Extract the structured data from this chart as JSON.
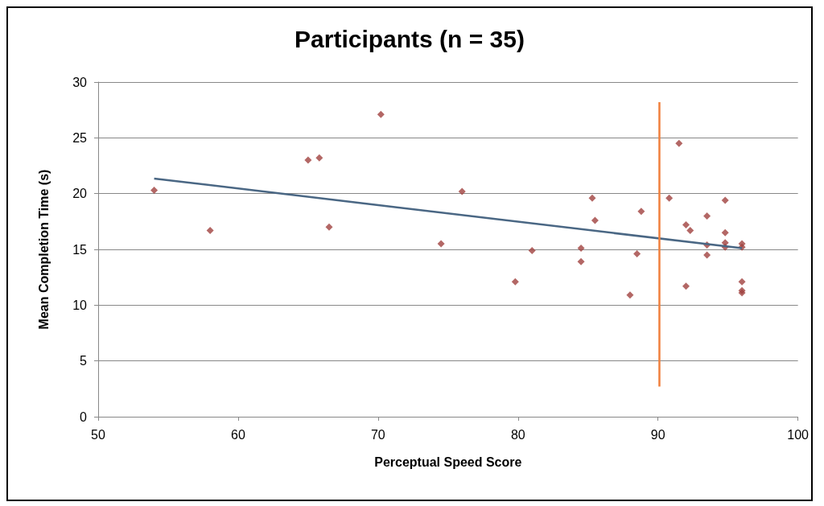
{
  "chart_data": {
    "type": "scatter",
    "title": "Participants (n = 35)",
    "xlabel": "Perceptual Speed Score",
    "ylabel": "Mean Completion Time (s)",
    "xlim": [
      50,
      100
    ],
    "xticks": [
      50,
      60,
      70,
      80,
      90,
      100
    ],
    "ylim": [
      0,
      30
    ],
    "yticks": [
      0,
      5,
      10,
      15,
      20,
      25,
      30
    ],
    "grid": "y",
    "marker": "diamond",
    "series": [
      {
        "color": "#a0413e",
        "x": [
          54,
          58,
          65,
          65.8,
          66.5,
          70.2,
          74.5,
          76,
          79.8,
          81,
          84.5,
          84.5,
          85.3,
          85.5,
          88,
          88.5,
          88.8,
          90.8,
          91.5,
          92,
          92.3,
          92,
          93.5,
          93.5,
          93.5,
          94.8,
          94.8,
          94.8,
          94.8,
          96,
          96,
          96,
          96,
          96
        ],
        "values": [
          20.3,
          16.7,
          23,
          23.2,
          17,
          27.1,
          15.5,
          20.2,
          12.1,
          14.9,
          15.1,
          13.9,
          19.6,
          17.6,
          10.9,
          14.6,
          18.4,
          19.6,
          24.5,
          17.2,
          16.7,
          11.7,
          18,
          15.4,
          14.5,
          19.4,
          16.5,
          15.6,
          15.2,
          15.5,
          15.2,
          12.1,
          11.3,
          11.1
        ]
      },
      {
        "type": "line",
        "color": "#4a6784",
        "x": [
          54,
          96
        ],
        "values": [
          21.35,
          15.1
        ],
        "marker": "none"
      },
      {
        "type": "line",
        "color": "#f07f3c",
        "x": [
          90.1,
          90.1
        ],
        "values": [
          2.7,
          28.2
        ],
        "marker": "none"
      }
    ]
  }
}
